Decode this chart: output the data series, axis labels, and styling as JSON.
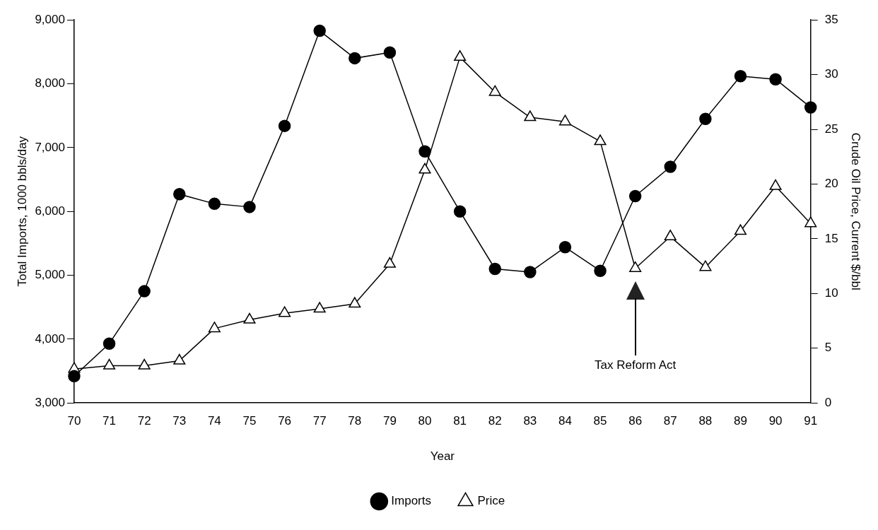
{
  "chart_data": {
    "type": "line",
    "xlabel": "Year",
    "ylabel": "Total Imports, 1000 bbls/day",
    "y2label": "Crude Oil Price, Current $/bbl",
    "categories": [
      "70",
      "71",
      "72",
      "73",
      "74",
      "75",
      "76",
      "77",
      "78",
      "79",
      "80",
      "81",
      "82",
      "83",
      "84",
      "85",
      "86",
      "87",
      "88",
      "89",
      "90",
      "91"
    ],
    "series": [
      {
        "name": "Imports",
        "color": "#000000",
        "marker": "circle",
        "axis": "y",
        "values": [
          3420,
          3930,
          4750,
          6270,
          6120,
          6070,
          7340,
          8830,
          8400,
          8490,
          6940,
          6000,
          5100,
          5050,
          5440,
          5070,
          6240,
          6700,
          7450,
          8120,
          8070,
          7630
        ]
      },
      {
        "name": "Price",
        "color": "#000000",
        "marker": "triangle",
        "axis": "y2",
        "values": [
          3.1,
          3.4,
          3.4,
          3.85,
          6.8,
          7.6,
          8.2,
          8.6,
          9.05,
          12.7,
          21.3,
          31.6,
          28.4,
          26.1,
          25.7,
          23.9,
          12.3,
          15.2,
          12.4,
          15.7,
          19.8,
          16.4
        ]
      }
    ],
    "ylim": [
      3000,
      9000
    ],
    "yticks": [
      {
        "value": 3000,
        "label": "3,000"
      },
      {
        "value": 4000,
        "label": "4,000"
      },
      {
        "value": 5000,
        "label": "5,000"
      },
      {
        "value": 6000,
        "label": "6,000"
      },
      {
        "value": 7000,
        "label": "7,000"
      },
      {
        "value": 8000,
        "label": "8,000"
      },
      {
        "value": 9000,
        "label": "9,000"
      }
    ],
    "y2lim": [
      0,
      35
    ],
    "y2ticks": [
      0,
      5,
      10,
      15,
      20,
      25,
      30,
      35
    ],
    "annotations": [
      {
        "text": "Tax Reform Act",
        "x": "86"
      }
    ],
    "grid": false,
    "legend": "bottom",
    "line_style": "solid"
  }
}
